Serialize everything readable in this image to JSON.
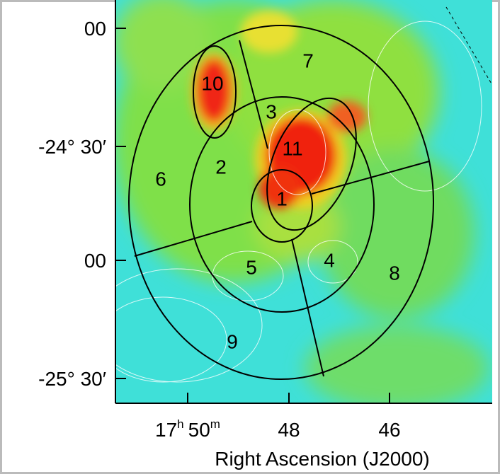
{
  "y_axis": {
    "ticks": [
      "00",
      "-24° 30′",
      "00",
      "-25° 30′"
    ]
  },
  "x_axis": {
    "title": "Right Ascension (J2000)",
    "first_tick": {
      "hours": "17",
      "hours_unit": "h",
      "minutes": "50",
      "minutes_unit": "m"
    },
    "ticks": [
      "48",
      "46"
    ]
  },
  "regions": [
    "1",
    "2",
    "3",
    "4",
    "5",
    "6",
    "7",
    "8",
    "9",
    "10",
    "11"
  ]
}
